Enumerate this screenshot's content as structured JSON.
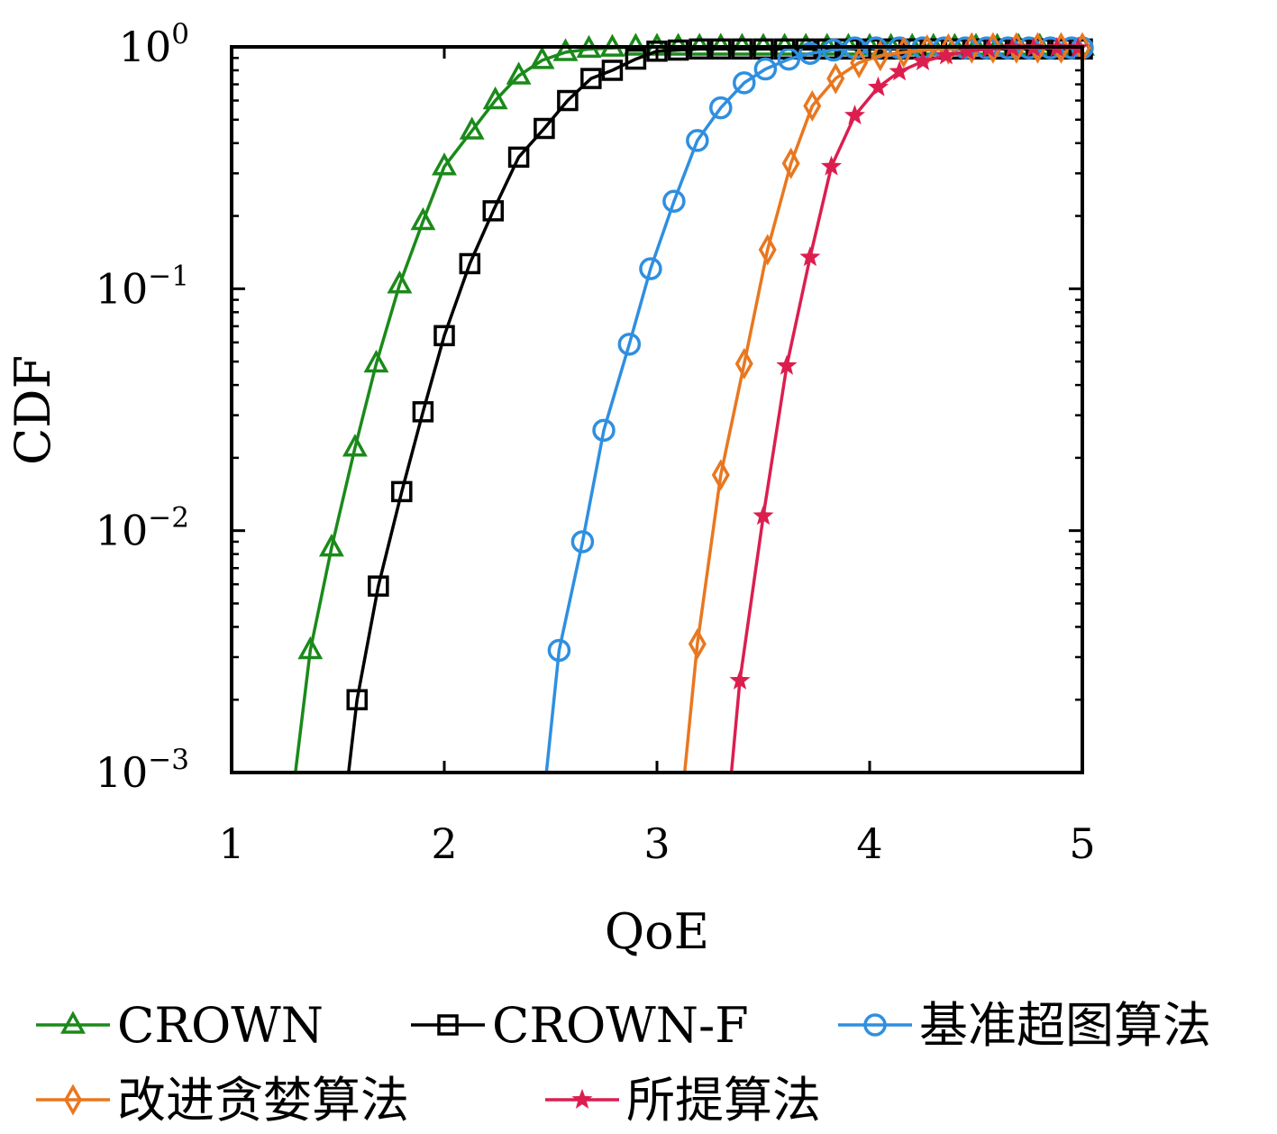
{
  "chart_data": {
    "type": "line",
    "xlabel": "QoE",
    "ylabel": "CDF",
    "xlim": [
      1,
      5
    ],
    "ylim": [
      0.001,
      1
    ],
    "yscale": "log",
    "x_ticks": [
      "1",
      "2",
      "3",
      "4",
      "5"
    ],
    "y_ticks": [
      {
        "base": "10",
        "exp": "0"
      },
      {
        "base": "10",
        "exp": "−1"
      },
      {
        "base": "10",
        "exp": "−2"
      },
      {
        "base": "10",
        "exp": "−3"
      }
    ],
    "grid": false,
    "legend_position": "bottom",
    "series": [
      {
        "name": "CROWN",
        "color": "#1a8a1a",
        "marker": "triangle",
        "x": [
          1.3,
          1.37,
          1.47,
          1.58,
          1.68,
          1.79,
          1.9,
          2.0,
          2.13,
          2.24,
          2.35,
          2.46,
          2.57,
          2.68,
          2.79,
          2.9,
          3.0,
          3.1,
          3.2,
          3.3,
          3.4,
          3.5,
          3.6,
          3.7,
          3.8,
          3.9,
          4.0,
          4.1,
          4.2,
          4.3,
          4.4,
          4.5,
          4.6,
          4.7,
          4.8,
          4.9,
          5.0
        ],
        "y": [
          0.001,
          0.0032,
          0.0085,
          0.022,
          0.049,
          0.104,
          0.19,
          0.32,
          0.45,
          0.6,
          0.76,
          0.88,
          0.95,
          0.98,
          0.99,
          1.0,
          1.0,
          1.0,
          1.0,
          1.0,
          1.0,
          1.0,
          1.0,
          1.0,
          1.0,
          1.0,
          1.0,
          1.0,
          1.0,
          1.0,
          1.0,
          1.0,
          1.0,
          1.0,
          1.0,
          1.0,
          1.0
        ],
        "markers_from": 1
      },
      {
        "name": "CROWN-F",
        "color": "#000000",
        "marker": "square",
        "x": [
          1.55,
          1.59,
          1.69,
          1.8,
          1.9,
          2.0,
          2.12,
          2.23,
          2.35,
          2.47,
          2.58,
          2.69,
          2.79,
          2.9,
          3.0,
          3.1,
          3.2,
          3.3,
          3.4,
          3.5,
          3.6,
          3.7,
          3.8,
          3.9,
          4.0,
          4.1,
          4.2,
          4.3,
          4.4,
          4.5,
          4.6,
          4.7,
          4.8,
          4.9,
          5.0
        ],
        "y": [
          0.001,
          0.002,
          0.0059,
          0.0145,
          0.031,
          0.064,
          0.127,
          0.21,
          0.35,
          0.46,
          0.6,
          0.74,
          0.8,
          0.89,
          0.96,
          0.97,
          0.98,
          0.98,
          0.98,
          0.98,
          0.98,
          0.98,
          0.98,
          0.98,
          0.98,
          0.98,
          0.98,
          0.98,
          0.98,
          0.98,
          0.98,
          0.98,
          0.98,
          0.98,
          0.98
        ],
        "markers_from": 1
      },
      {
        "name": "基准超图算法",
        "color": "#2f8fe0",
        "marker": "circle",
        "x": [
          2.48,
          2.54,
          2.65,
          2.75,
          2.87,
          2.97,
          3.08,
          3.19,
          3.3,
          3.41,
          3.51,
          3.62,
          3.72,
          3.83,
          3.93,
          4.03,
          4.14,
          4.25,
          4.35,
          4.45,
          4.55,
          4.65,
          4.75,
          4.85,
          4.95,
          5.0
        ],
        "y": [
          0.001,
          0.0032,
          0.009,
          0.026,
          0.059,
          0.121,
          0.23,
          0.41,
          0.56,
          0.71,
          0.81,
          0.89,
          0.94,
          0.97,
          0.99,
          0.99,
          0.99,
          0.99,
          0.99,
          0.99,
          0.99,
          0.99,
          0.99,
          0.99,
          0.99,
          0.99
        ],
        "markers_from": 1
      },
      {
        "name": "改进贪婪算法",
        "color": "#e9771f",
        "marker": "diamond",
        "x": [
          3.13,
          3.19,
          3.3,
          3.41,
          3.52,
          3.63,
          3.73,
          3.84,
          3.95,
          4.05,
          4.16,
          4.27,
          4.37,
          4.48,
          4.58,
          4.69,
          4.79,
          4.9,
          5.0
        ],
        "y": [
          0.001,
          0.0034,
          0.017,
          0.049,
          0.145,
          0.33,
          0.57,
          0.74,
          0.86,
          0.92,
          0.95,
          0.97,
          0.98,
          0.99,
          0.99,
          0.99,
          0.99,
          0.99,
          0.99
        ],
        "markers_from": 1
      },
      {
        "name": "所提算法",
        "color": "#dc1e4f",
        "marker": "star",
        "x": [
          3.35,
          3.39,
          3.5,
          3.61,
          3.72,
          3.82,
          3.93,
          4.04,
          4.14,
          4.25,
          4.36,
          4.46,
          4.56,
          4.67,
          4.77,
          4.88,
          4.98
        ],
        "y": [
          0.001,
          0.0024,
          0.0115,
          0.048,
          0.135,
          0.32,
          0.52,
          0.68,
          0.79,
          0.87,
          0.92,
          0.96,
          0.98,
          0.99,
          0.99,
          0.99,
          0.99
        ],
        "markers_from": 1
      }
    ]
  }
}
